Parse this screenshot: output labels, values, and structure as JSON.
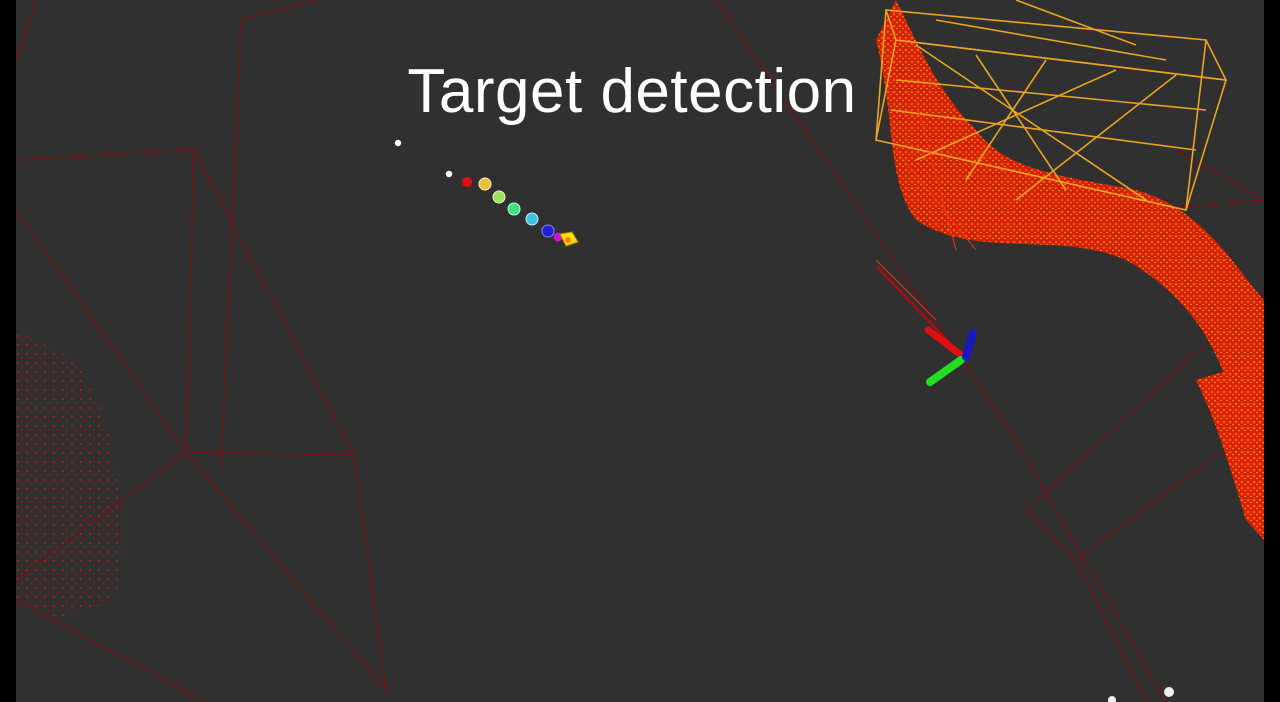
{
  "overlay": {
    "title": "Target detection"
  },
  "scene": {
    "background_color": "#303030",
    "grid_color": "#7a1410",
    "point_cloud_color": "#ff2a00",
    "point_cloud_highlight": "#ffd000",
    "trajectory_colors": [
      "#ffffff",
      "#ffffff",
      "#e01010",
      "#e8c040",
      "#a0e060",
      "#40e080",
      "#40c0e0",
      "#2020d0",
      "#ffe000"
    ],
    "axes": {
      "x_color": "#e01010",
      "y_color": "#20e020",
      "z_color": "#1818c0"
    }
  },
  "icons": {
    "axes_marker": "frame-axes-icon",
    "target_marker": "target-cube-icon"
  }
}
